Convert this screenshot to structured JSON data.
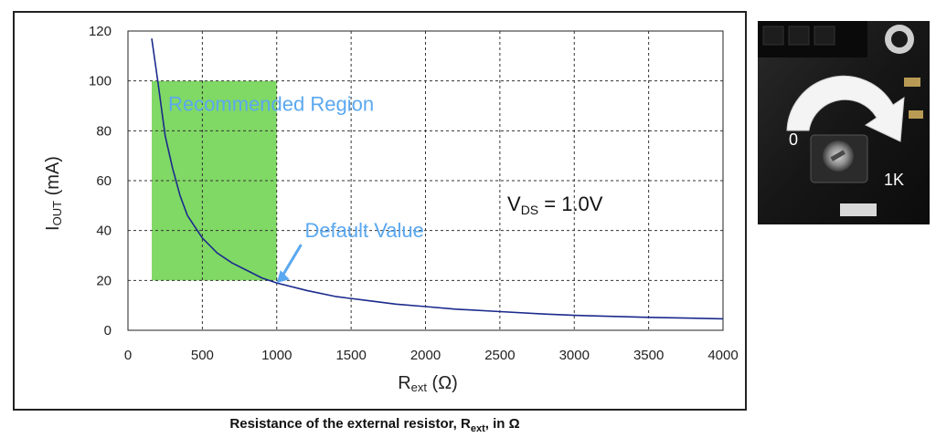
{
  "chart_data": {
    "type": "line",
    "xlabel_main": "R",
    "xlabel_sub": "ext",
    "xlabel_unit": " (Ω)",
    "ylabel_main": "I",
    "ylabel_sub": "OUT",
    "ylabel_unit": " (mA)",
    "xlim": [
      0,
      4000
    ],
    "ylim": [
      0,
      120
    ],
    "x_ticks": [
      0,
      500,
      1000,
      1500,
      2000,
      2500,
      3000,
      3500,
      4000
    ],
    "y_ticks": [
      0,
      20,
      40,
      60,
      80,
      100,
      120
    ],
    "grid": true,
    "series": [
      {
        "color": "#1a2a8c",
        "x": [
          160,
          200,
          250,
          300,
          350,
          400,
          500,
          600,
          700,
          800,
          900,
          1000,
          1200,
          1400,
          1600,
          1800,
          2000,
          2200,
          2500,
          2800,
          3000,
          3500,
          4000
        ],
        "y": [
          117,
          100,
          78,
          65,
          54,
          46,
          37,
          31,
          27,
          24,
          21,
          19,
          16,
          13.5,
          12,
          10.5,
          9.5,
          8.5,
          7.5,
          6.5,
          6,
          5.2,
          4.6
        ]
      }
    ],
    "recommended_region": {
      "x": [
        160,
        1000
      ],
      "y": [
        20,
        100
      ],
      "color": "#80d865"
    },
    "annotations": {
      "recommended_region_label": "Recommended Region",
      "default_value_label": "Default Value",
      "default_value_point": [
        1000,
        19
      ],
      "default_value_text_at": [
        1250,
        38
      ],
      "vds_main": "V",
      "vds_sub": "DS",
      "vds_value": " = 1.0V",
      "vds_at": [
        2550,
        48
      ],
      "label_color": "#5aa8f0"
    }
  },
  "caption": {
    "prefix": "Resistance of the external resistor, R",
    "sub": "ext",
    "suffix": ", in Ω"
  },
  "photo": {
    "label_min": "0",
    "label_max": "1K"
  }
}
